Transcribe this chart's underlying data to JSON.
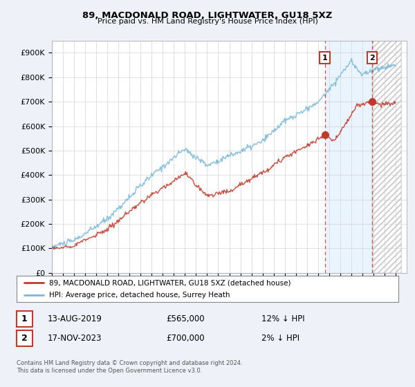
{
  "title": "89, MACDONALD ROAD, LIGHTWATER, GU18 5XZ",
  "subtitle": "Price paid vs. HM Land Registry's House Price Index (HPI)",
  "ylabel_ticks": [
    "£0",
    "£100K",
    "£200K",
    "£300K",
    "£400K",
    "£500K",
    "£600K",
    "£700K",
    "£800K",
    "£900K"
  ],
  "ytick_values": [
    0,
    100000,
    200000,
    300000,
    400000,
    500000,
    600000,
    700000,
    800000,
    900000
  ],
  "ylim": [
    0,
    950000
  ],
  "hpi_color": "#7ab8d9",
  "price_color": "#c0392b",
  "marker1_year": 2019.62,
  "marker1_price": 565000,
  "marker2_year": 2023.88,
  "marker2_price": 700000,
  "vline_color": "#c0392b",
  "annotation_box_color": "#c0392b",
  "legend_label_price": "89, MACDONALD ROAD, LIGHTWATER, GU18 5XZ (detached house)",
  "legend_label_hpi": "HPI: Average price, detached house, Surrey Heath",
  "table_row1": [
    "1",
    "13-AUG-2019",
    "£565,000",
    "12% ↓ HPI"
  ],
  "table_row2": [
    "2",
    "17-NOV-2023",
    "£700,000",
    "2% ↓ HPI"
  ],
  "footer": "Contains HM Land Registry data © Crown copyright and database right 2024.\nThis data is licensed under the Open Government Licence v3.0.",
  "background_color": "#eef2f8",
  "plot_background": "#ffffff",
  "grid_color": "#cccccc",
  "shade_color": "#ddeeff",
  "hatch_color": "#cccccc"
}
